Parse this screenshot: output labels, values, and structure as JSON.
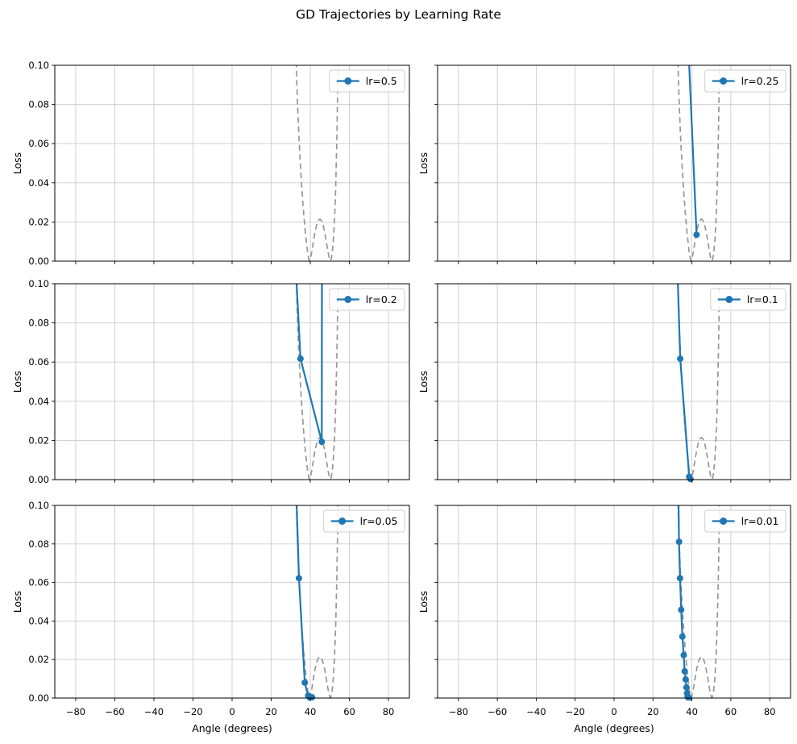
{
  "figure": {
    "title": "GD Trajectories by Learning Rate",
    "background": "#ffffff"
  },
  "colors": {
    "trajectory": "#1f77b4",
    "landscape": "#979797",
    "grid": "#cccccc",
    "spine": "#000000",
    "tick_text": "#000000",
    "legend_border": "#cfcfcf",
    "legend_fill": "#ffffff"
  },
  "chart_data": {
    "type": "line",
    "title": "GD Trajectories by Learning Rate",
    "xlabel": "Angle (degrees)",
    "ylabel": "Loss",
    "xlim": [
      -90.7,
      90.7
    ],
    "ylim": [
      0,
      0.1
    ],
    "grid": true,
    "legend_position": "upper right",
    "xticks": [
      -80,
      -60,
      -40,
      -20,
      0,
      20,
      40,
      60,
      80
    ],
    "xtick_labels": [
      "−80",
      "−60",
      "−40",
      "−20",
      "0",
      "20",
      "40",
      "60",
      "80"
    ],
    "yticks": [
      0,
      0.02,
      0.04,
      0.06,
      0.08,
      0.1
    ],
    "ytick_labels": [
      "0.00",
      "0.02",
      "0.04",
      "0.06",
      "0.08",
      "0.10"
    ],
    "landscape": {
      "name": "loss-landscape",
      "style": "dashed",
      "points": [
        [
          32.2,
          0.135
        ],
        [
          32.7,
          0.108
        ],
        [
          33.1,
          0.092
        ],
        [
          33.6,
          0.0775
        ],
        [
          34.1,
          0.0655
        ],
        [
          34.7,
          0.0535
        ],
        [
          35.3,
          0.0435
        ],
        [
          36.0,
          0.0325
        ],
        [
          36.7,
          0.0235
        ],
        [
          37.4,
          0.0155
        ],
        [
          38.1,
          0.009
        ],
        [
          38.7,
          0.004
        ],
        [
          39.2,
          0.001
        ],
        [
          39.6,
          0.0002
        ],
        [
          40.1,
          0.0015
        ],
        [
          40.8,
          0.005
        ],
        [
          41.6,
          0.01
        ],
        [
          42.4,
          0.0147
        ],
        [
          43.2,
          0.0183
        ],
        [
          44.0,
          0.0206
        ],
        [
          44.9,
          0.0215
        ],
        [
          45.8,
          0.0206
        ],
        [
          46.6,
          0.0183
        ],
        [
          47.4,
          0.0147
        ],
        [
          48.2,
          0.01
        ],
        [
          49.0,
          0.005
        ],
        [
          49.7,
          0.0015
        ],
        [
          50.2,
          0.0002
        ],
        [
          50.7,
          0.001
        ],
        [
          51.2,
          0.004
        ],
        [
          51.8,
          0.0105
        ],
        [
          52.4,
          0.021
        ],
        [
          53.0,
          0.038
        ],
        [
          53.6,
          0.063
        ],
        [
          54.1,
          0.092
        ],
        [
          54.5,
          0.125
        ],
        [
          54.9,
          0.17
        ]
      ]
    },
    "panels": [
      {
        "label": "lr=0.5",
        "trajectory": []
      },
      {
        "label": "lr=0.25",
        "trajectory": [
          [
            36.2,
            0.155
          ],
          [
            42.4,
            0.0135
          ]
        ]
      },
      {
        "label": "lr=0.2",
        "trajectory": [
          [
            30.9,
            0.14
          ],
          [
            35.0,
            0.0617
          ],
          [
            45.9,
            0.0193
          ],
          [
            46.4,
            0.5
          ]
        ]
      },
      {
        "label": "lr=0.1",
        "trajectory": [
          [
            31.5,
            0.14
          ],
          [
            34.0,
            0.0617
          ],
          [
            38.6,
            0.0015
          ],
          [
            39.3,
            0.0003
          ]
        ]
      },
      {
        "label": "lr=0.05",
        "trajectory": [
          [
            31.8,
            0.14
          ],
          [
            34.2,
            0.0622
          ],
          [
            37.2,
            0.008
          ],
          [
            38.9,
            0.0012
          ],
          [
            40.9,
            0.0004
          ],
          [
            39.8,
            0.0002
          ]
        ]
      },
      {
        "label": "lr=0.01",
        "trajectory": [
          [
            32.9,
            0.12
          ],
          [
            33.4,
            0.0811
          ],
          [
            33.9,
            0.0622
          ],
          [
            34.5,
            0.0458
          ],
          [
            35.1,
            0.0319
          ],
          [
            35.8,
            0.0223
          ],
          [
            36.3,
            0.0139
          ],
          [
            36.8,
            0.0097
          ],
          [
            37.2,
            0.0055
          ],
          [
            37.5,
            0.0025
          ],
          [
            37.8,
            0.0008
          ],
          [
            38.1,
            0.0003
          ],
          [
            38.6,
            0.0001
          ]
        ]
      }
    ]
  }
}
